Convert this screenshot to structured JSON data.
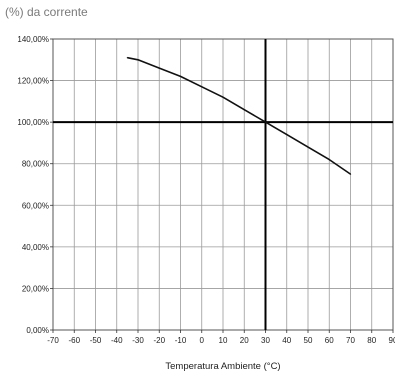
{
  "chart_data": {
    "type": "line",
    "title": "(%) da corrente",
    "xlabel": "Temperatura Ambiente (°C)",
    "ylabel": "",
    "xlim": [
      -70,
      90
    ],
    "ylim": [
      0,
      140
    ],
    "x_ticks": [
      -70,
      -60,
      -50,
      -40,
      -30,
      -20,
      -10,
      0,
      10,
      20,
      30,
      40,
      50,
      60,
      70,
      80,
      90
    ],
    "y_ticks": [
      0,
      20,
      40,
      60,
      80,
      100,
      120,
      140
    ],
    "y_tick_labels": [
      "0,00%",
      "20,00%",
      "40,00%",
      "60,00%",
      "80,00%",
      "100,00%",
      "120,00%",
      "140,00%"
    ],
    "grid": true,
    "reference_lines": {
      "x": 30,
      "y": 100
    },
    "series": [
      {
        "x": [
          -35,
          -30,
          -20,
          -10,
          0,
          10,
          20,
          30,
          40,
          50,
          60,
          70
        ],
        "values": [
          131,
          130,
          126,
          122,
          117,
          112,
          106,
          100,
          94,
          88,
          82,
          75
        ]
      }
    ],
    "colors": {
      "line": "#111111",
      "grid": "#9a9a9a",
      "reference": "#000000",
      "title": "#7a7a7a"
    }
  }
}
